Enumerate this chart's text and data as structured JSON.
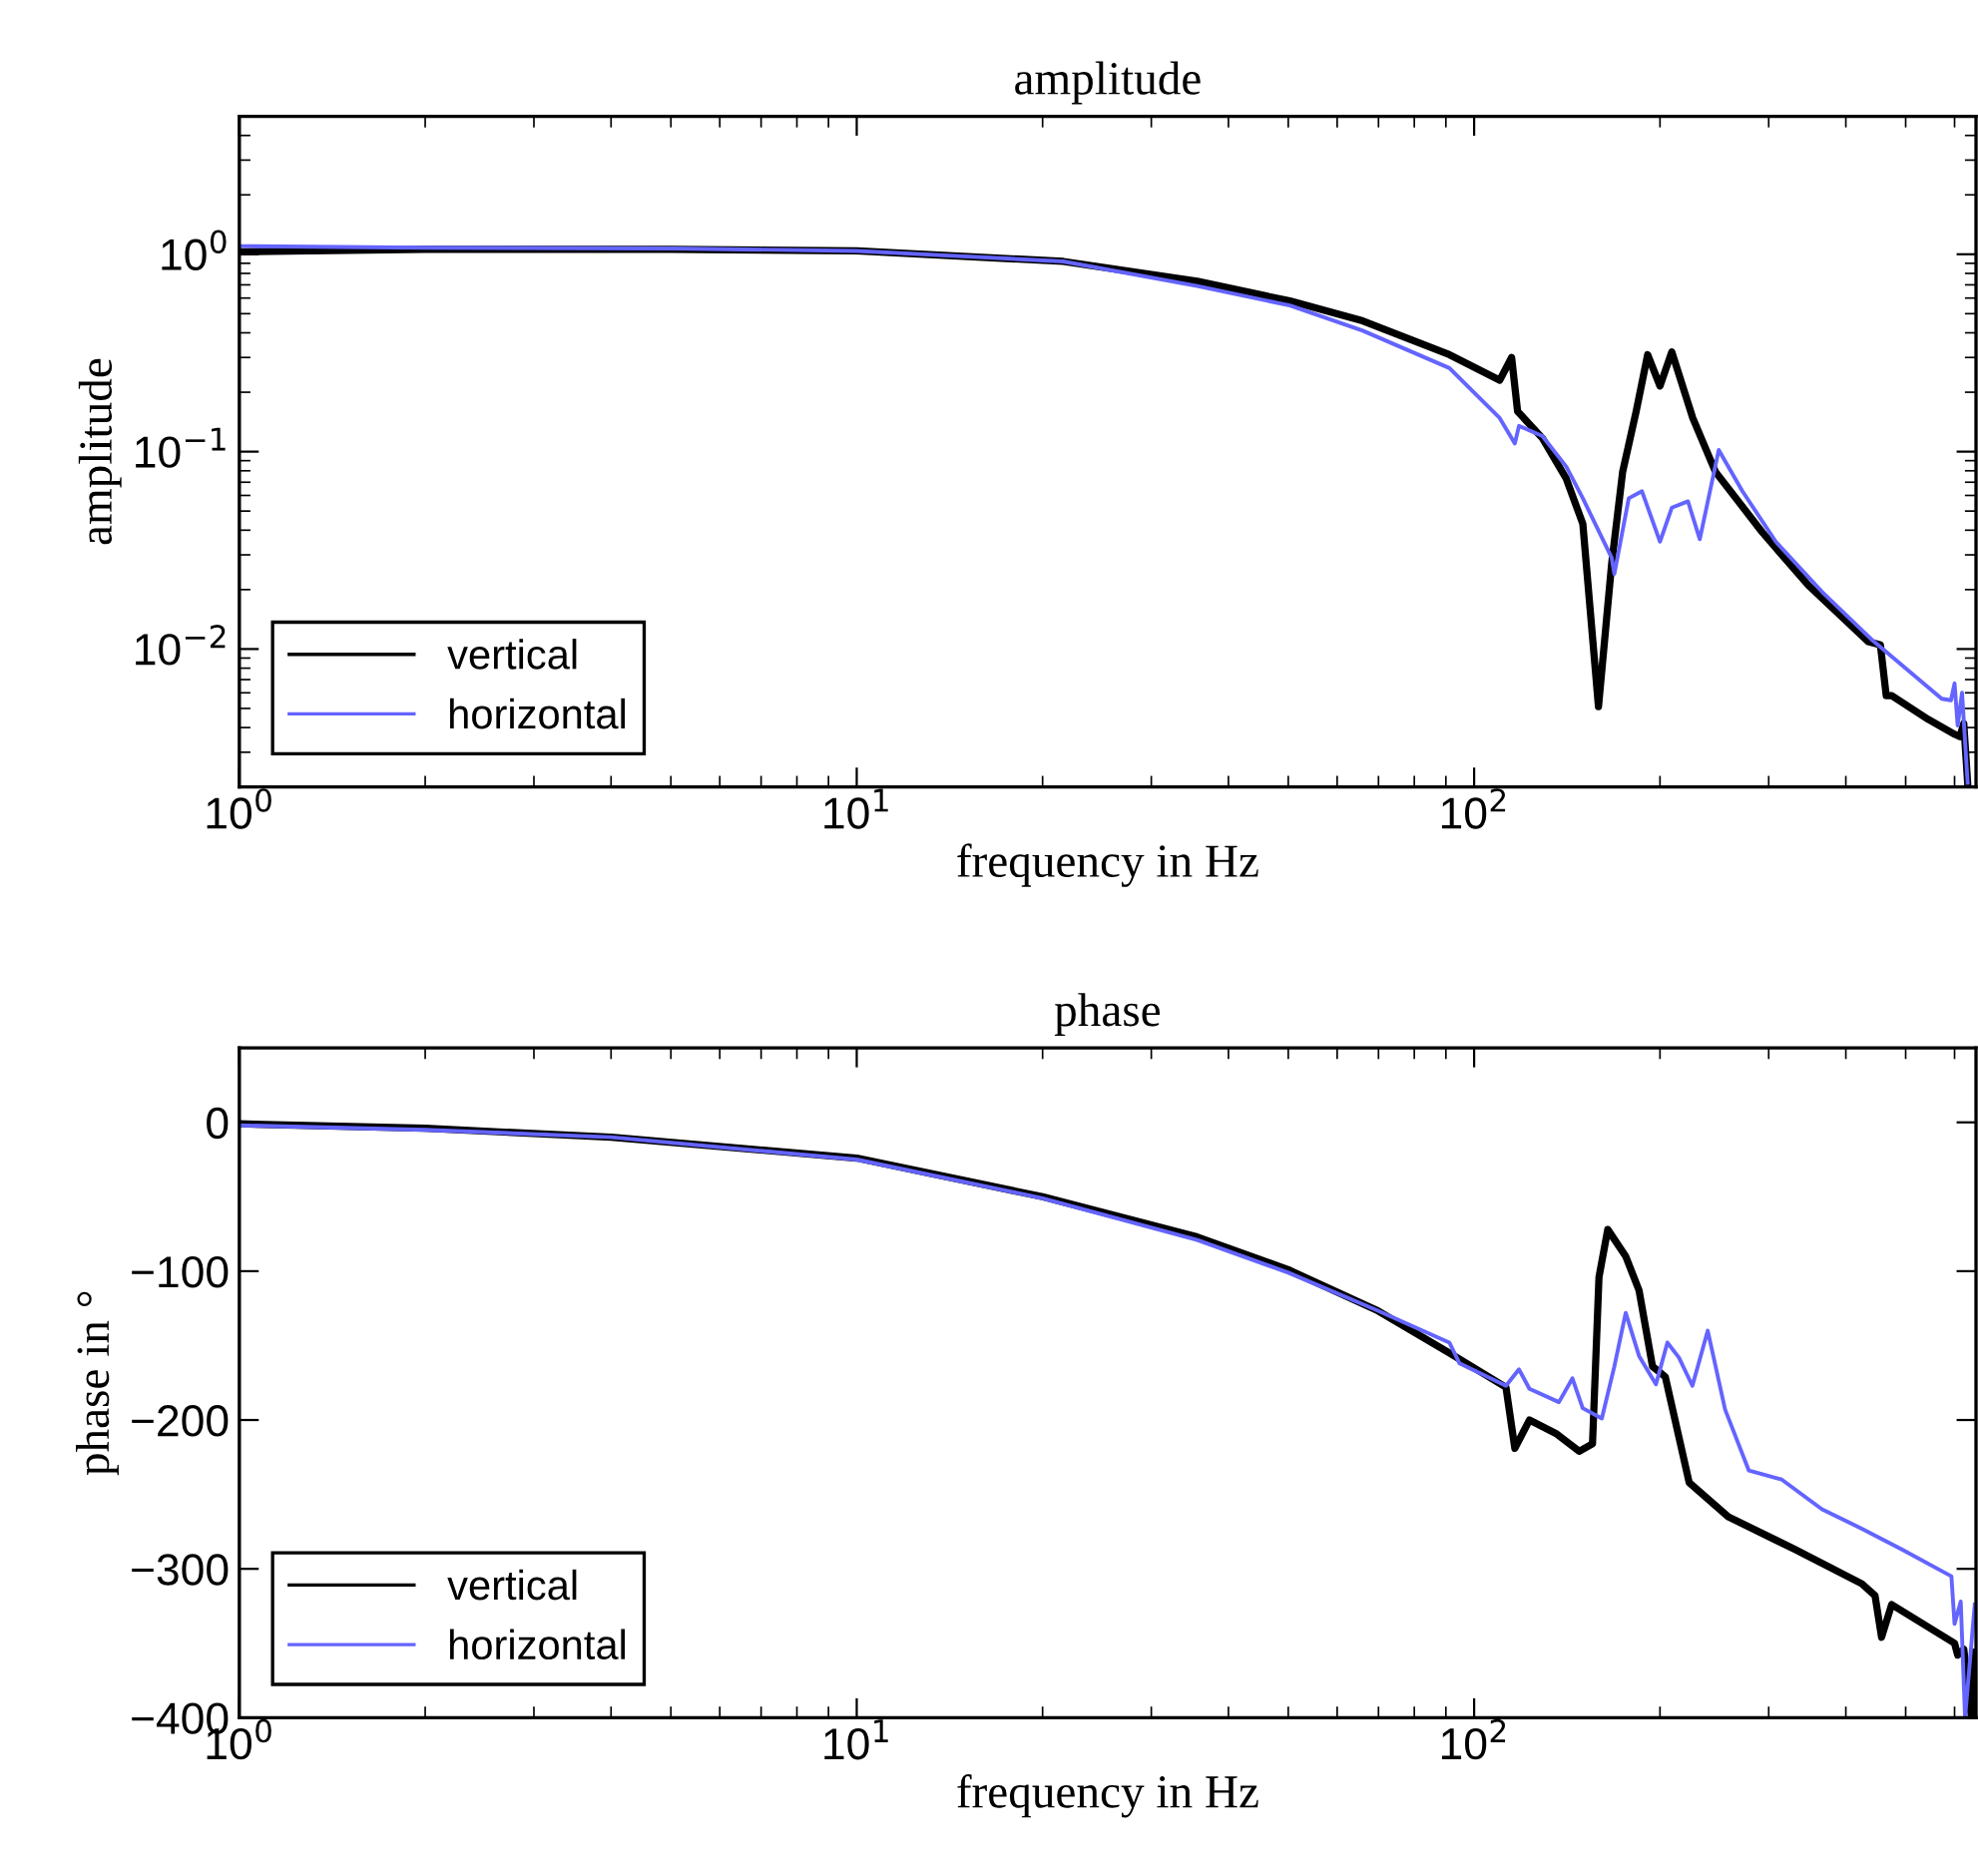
{
  "chart_data": [
    {
      "type": "line",
      "title": "amplitude",
      "xlabel": "frequency in Hz",
      "ylabel": "amplitude",
      "log": "xy",
      "xlim": [
        1,
        650
      ],
      "ylim": [
        0.002,
        5
      ],
      "xticks": [
        {
          "value": 1,
          "label": "10$^{0}$"
        },
        {
          "value": 10,
          "label": "10$^{1}$"
        },
        {
          "value": 100,
          "label": "10$^{2}$"
        }
      ],
      "yticks": [
        {
          "value": 0.01,
          "label": "10$^{−2}$"
        },
        {
          "value": 0.1,
          "label": "10$^{−1}$"
        },
        {
          "value": 1,
          "label": "10$^{0}$"
        }
      ],
      "legend": "bottom left",
      "grid": false,
      "series": [
        {
          "name": "vertical",
          "color": "#000000",
          "x": [
            1,
            2,
            5,
            10,
            21.6,
            35.6,
            50.3,
            66,
            91.2,
            110,
            115,
            117.6,
            129,
            141,
            150,
            159,
            167,
            174,
            183,
            191,
            200,
            209,
            226,
            246,
            293,
            348,
            435,
            455,
            465,
            475,
            544,
            600,
            612,
            621,
            630
          ],
          "values": [
            1.03,
            1.06,
            1.06,
            1.04,
            0.92,
            0.73,
            0.58,
            0.46,
            0.31,
            0.23,
            0.3,
            0.16,
            0.117,
            0.073,
            0.043,
            0.0051,
            0.027,
            0.079,
            0.16,
            0.31,
            0.215,
            0.32,
            0.148,
            0.079,
            0.039,
            0.021,
            0.0109,
            0.0105,
            0.0058,
            0.0058,
            0.0044,
            0.0037,
            0.0036,
            0.0042,
            0.0021
          ]
        },
        {
          "name": "horizontal",
          "color": "#6464ff",
          "x": [
            1,
            2,
            5,
            10,
            21.6,
            35.6,
            50.3,
            66,
            91.2,
            110,
            116.4,
            118.2,
            129,
            141,
            150,
            167,
            168.7,
            178,
            187,
            200,
            209,
            222,
            232,
            249,
            272,
            308,
            366,
            440,
            572,
            592,
            600,
            607,
            617,
            630
          ],
          "values": [
            1.1,
            1.08,
            1.07,
            1.04,
            0.92,
            0.69,
            0.55,
            0.41,
            0.265,
            0.148,
            0.11,
            0.135,
            0.12,
            0.084,
            0.058,
            0.029,
            0.024,
            0.058,
            0.063,
            0.035,
            0.052,
            0.056,
            0.036,
            0.102,
            0.063,
            0.035,
            0.0195,
            0.0112,
            0.0056,
            0.0055,
            0.0067,
            0.0041,
            0.006,
            0.0021
          ]
        }
      ]
    },
    {
      "type": "line",
      "title": "phase",
      "xlabel": "frequency in Hz",
      "ylabel": "phase in °",
      "log": "x",
      "xlim": [
        1,
        650
      ],
      "ylim": [
        -400,
        50
      ],
      "xticks": [
        {
          "value": 1,
          "label": "10$^{0}$"
        },
        {
          "value": 10,
          "label": "10$^{1}$"
        },
        {
          "value": 100,
          "label": "10$^{2}$"
        }
      ],
      "yticks": [
        {
          "value": 0,
          "label": "0"
        },
        {
          "value": -100,
          "label": "−100"
        },
        {
          "value": -200,
          "label": "−200"
        },
        {
          "value": -300,
          "label": "−300"
        },
        {
          "value": -400,
          "label": "−400"
        }
      ],
      "legend": "bottom left",
      "grid": false,
      "series": [
        {
          "name": "vertical",
          "color": "#000000",
          "x": [
            1,
            2,
            4,
            10,
            20,
            35.6,
            50,
            69.4,
            91.2,
            112.6,
            116.4,
            122.9,
            135.6,
            148,
            155.5,
            159.3,
            164.6,
            176,
            185,
            194.5,
            204,
            223,
            258,
            331,
            424.6,
            446,
            457,
            474.5,
            600,
            607,
            621,
            639,
            647
          ],
          "values": [
            -1,
            -4,
            -10,
            -24,
            -50,
            -77,
            -99,
            -126,
            -155,
            -178,
            -219,
            -200,
            -209,
            -221,
            -216,
            -104,
            -72,
            -90,
            -113,
            -164,
            -171,
            -242,
            -265,
            -287,
            -310,
            -318,
            -346,
            -324,
            -350,
            -358,
            -354,
            -400,
            -356
          ]
        },
        {
          "name": "horizontal",
          "color": "#6464ff",
          "x": [
            1,
            2,
            4,
            10,
            20,
            35.6,
            50,
            69.4,
            91.2,
            94.7,
            112.6,
            118.2,
            122.9,
            137.2,
            144.3,
            149.9,
            161,
            168.7,
            176,
            185,
            197,
            205.6,
            214.6,
            225.7,
            239,
            255,
            278.6,
            315,
            366,
            424.6,
            493,
            593,
            600,
            614,
            624,
            647
          ],
          "values": [
            -2,
            -5,
            -10,
            -25,
            -51,
            -79,
            -101,
            -126,
            -148,
            -162,
            -177,
            -166,
            -179,
            -188,
            -172,
            -192,
            -199,
            -164,
            -128,
            -157,
            -176,
            -148,
            -158,
            -177,
            -140,
            -193,
            -234,
            -240,
            -260,
            -273,
            -287,
            -305,
            -337,
            -322,
            -400,
            -324
          ]
        }
      ]
    }
  ]
}
